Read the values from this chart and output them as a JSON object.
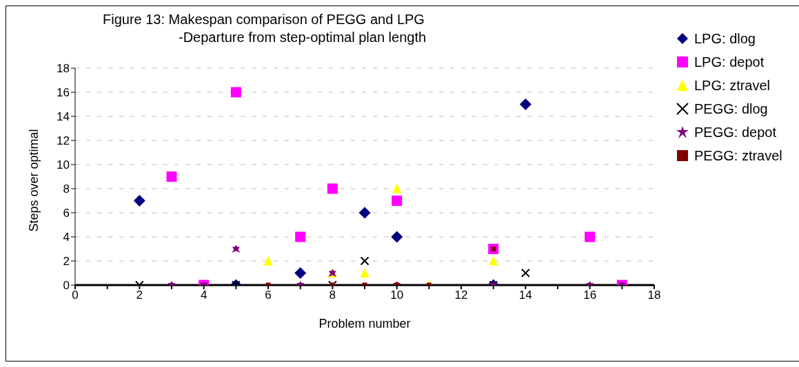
{
  "chart_data": {
    "type": "scatter",
    "title": "Figure 13:  Makespan comparison of PEGG and LPG",
    "subtitle": "-Departure from step-optimal plan length",
    "xlabel": "Problem number",
    "ylabel": "Steps over optimal",
    "xlim": [
      0,
      18
    ],
    "ylim": [
      0,
      18
    ],
    "xticks": [
      0,
      {
        "value": 1,
        "label": null
      },
      2,
      {
        "value": 3,
        "label": null
      },
      4,
      {
        "value": 5,
        "label": null
      },
      6,
      {
        "value": 7,
        "label": null
      },
      8,
      {
        "value": 9,
        "label": null
      },
      10,
      {
        "value": 11,
        "label": null
      },
      12,
      {
        "value": 13,
        "label": null
      },
      14,
      {
        "value": 15,
        "label": null
      },
      16,
      {
        "value": 17,
        "label": null
      },
      18
    ],
    "yticks": [
      0,
      2,
      4,
      6,
      8,
      10,
      12,
      14,
      16,
      18
    ],
    "grid": "y",
    "legend": "right",
    "series": [
      {
        "name": "LPG: dlog",
        "color": "#000080",
        "marker": "diamond",
        "x": [
          2,
          5,
          7,
          9,
          10,
          13,
          14
        ],
        "values": [
          7,
          0,
          1,
          6,
          4,
          0,
          15
        ]
      },
      {
        "name": "LPG: depot",
        "color": "#ff00ff",
        "marker": "square",
        "x": [
          3,
          4,
          5,
          7,
          8,
          10,
          13,
          16,
          17
        ],
        "values": [
          9,
          0,
          16,
          4,
          8,
          7,
          3,
          4,
          0
        ]
      },
      {
        "name": "LPG: ztravel",
        "color": "#ffff00",
        "marker": "triangle",
        "x": [
          6,
          8,
          9,
          10,
          11,
          13
        ],
        "values": [
          2,
          1,
          1,
          8,
          0,
          2
        ]
      },
      {
        "name": "PEGG: dlog",
        "color": "#000000",
        "marker": "cross",
        "x": [
          2,
          5,
          8,
          9,
          13,
          14
        ],
        "values": [
          0,
          0,
          0,
          2,
          0,
          1
        ]
      },
      {
        "name": "PEGG: depot",
        "color": "#800080",
        "marker": "star",
        "x": [
          3,
          4,
          5,
          7,
          8,
          10,
          13,
          16,
          17
        ],
        "values": [
          0,
          0,
          3,
          0,
          1,
          0,
          0,
          0,
          0
        ]
      },
      {
        "name": "PEGG: ztravel",
        "color": "#800000",
        "marker": "square",
        "x": [
          6,
          8,
          9,
          10,
          11,
          13
        ],
        "values": [
          0,
          0,
          0,
          0,
          0,
          3
        ]
      }
    ]
  }
}
